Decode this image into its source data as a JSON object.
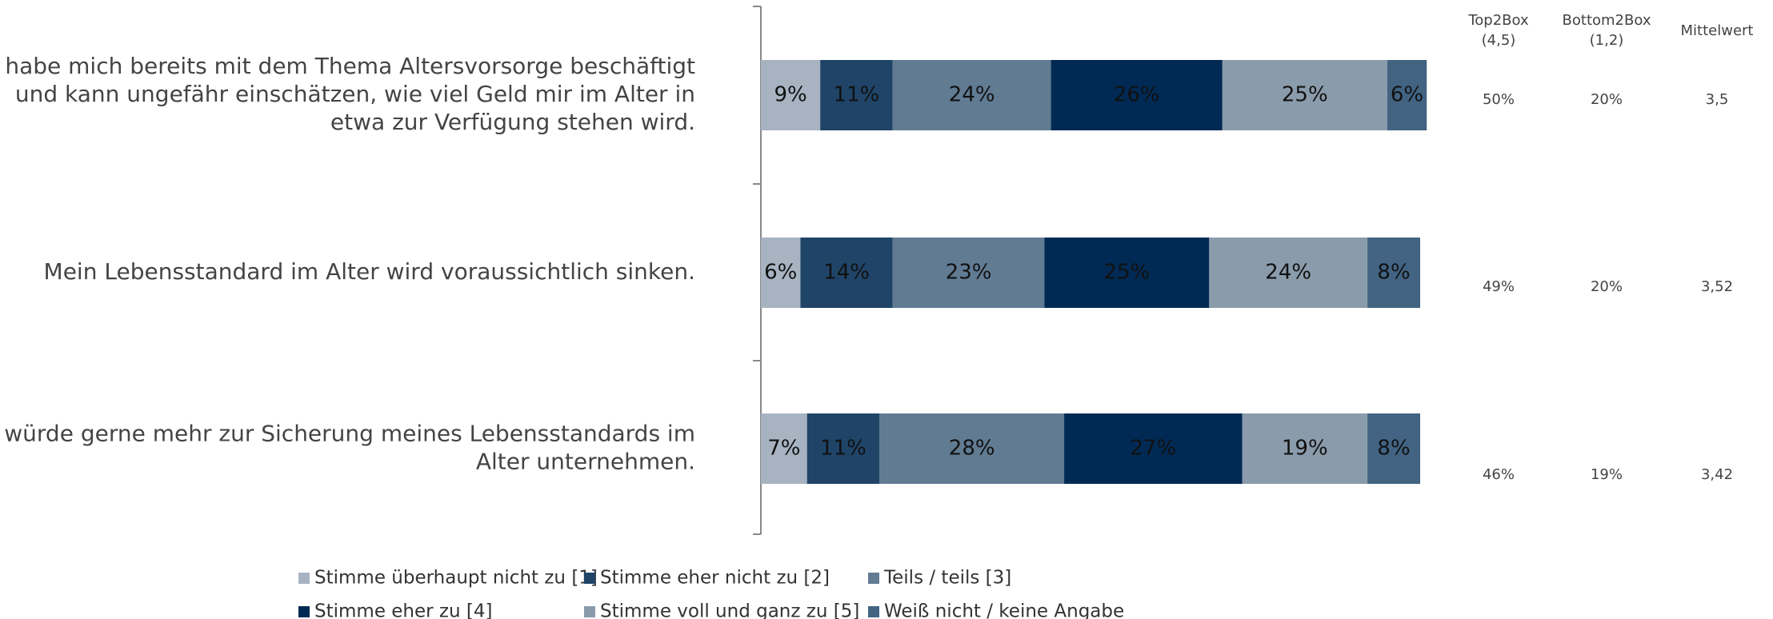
{
  "chart_data": {
    "type": "bar",
    "orientation": "horizontal",
    "stacked": true,
    "categories": [
      [
        "Ich habe mich bereits mit dem Thema Altersvorsorge beschäftigt",
        "und kann ungefähr einschätzen, wie viel Geld mir im Alter in",
        "etwa zur Verfügung stehen wird."
      ],
      [
        "Mein Lebensstandard im Alter wird voraussichtlich sinken."
      ],
      [
        "Ich würde gerne mehr zur Sicherung meines Lebensstandards im",
        "Alter unternehmen."
      ]
    ],
    "xlim": [
      0,
      100
    ],
    "series": [
      {
        "name": "Stimme überhaupt nicht zu [1]",
        "color": "#a7b3c1",
        "values": [
          9,
          6,
          7
        ],
        "value_labels": [
          "9%",
          "6%",
          "7%"
        ]
      },
      {
        "name": "Stimme eher nicht zu [2]",
        "color": "#1f4468",
        "values": [
          11,
          14,
          11
        ],
        "value_labels": [
          "11%",
          "14%",
          "11%"
        ]
      },
      {
        "name": "Teils / teils [3]",
        "color": "#617b93",
        "values": [
          24,
          23,
          28
        ],
        "value_labels": [
          "24%",
          "23%",
          "28%"
        ]
      },
      {
        "name": "Stimme eher zu [4]",
        "color": "#002a54",
        "values": [
          26,
          25,
          27
        ],
        "value_labels": [
          "26%",
          "25%",
          "27%"
        ]
      },
      {
        "name": "Stimme voll und ganz zu [5]",
        "color": "#8a9bab",
        "values": [
          25,
          24,
          19
        ],
        "value_labels": [
          "25%",
          "24%",
          "19%"
        ]
      },
      {
        "name": "Weiß nicht / keine Angabe",
        "color": "#426382",
        "values": [
          6,
          8,
          8
        ],
        "value_labels": [
          "6%",
          "8%",
          "8%"
        ]
      }
    ],
    "legend": "bottom"
  },
  "summary": {
    "headers": [
      [
        "Top2Box",
        "(4,5)"
      ],
      [
        "Bottom2Box",
        "(1,2)"
      ],
      [
        "Mittelwert"
      ]
    ],
    "rows": [
      [
        "50%",
        "20%",
        "3,5"
      ],
      [
        "49%",
        "20%",
        "3,52"
      ],
      [
        "46%",
        "19%",
        "3,42"
      ]
    ]
  }
}
